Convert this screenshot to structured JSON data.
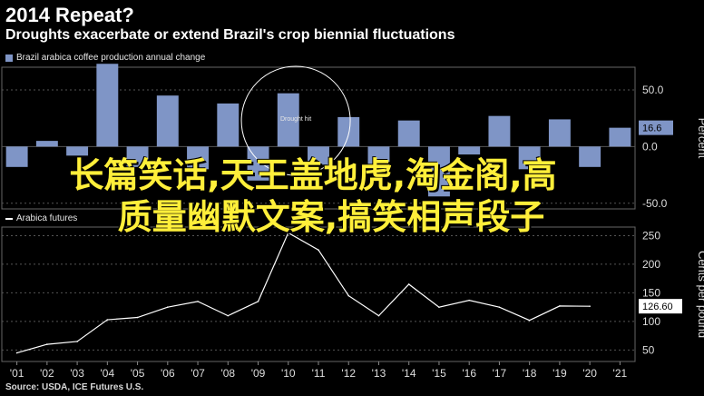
{
  "header": {
    "title": "2014 Repeat?",
    "subtitle": "Droughts exacerbate or extend Brazil's crop biennial fluctuations"
  },
  "source": "Source: USDA, ICE Futures U.S.",
  "overlay_text": [
    "长篇笑话,天王盖地虎,淘金阁,高",
    "质量幽默文案,搞笑相声段子"
  ],
  "colors": {
    "bar": "#7f95c6",
    "line": "#ffffff",
    "highlight_label": "#7f95c6",
    "overlay": "#ffef3a",
    "background": "#000000"
  },
  "chart_data": [
    {
      "type": "bar",
      "legend": "Brazil arabica coffee production annual change",
      "categories": [
        "'01",
        "'02",
        "'03",
        "'04",
        "'05",
        "'06",
        "'07",
        "'08",
        "'09",
        "'10",
        "'11",
        "'12",
        "'13",
        "'14",
        "'15",
        "'16",
        "'17",
        "'18",
        "'19",
        "'20",
        "'21"
      ],
      "values": [
        -18,
        5,
        -8,
        73,
        -18,
        45,
        -20,
        38,
        -30,
        47,
        -16,
        26,
        -20,
        23,
        -44,
        -7,
        27,
        -20,
        24,
        -18,
        16.6
      ],
      "ylim": [
        -55,
        70
      ],
      "yticks": [
        -50.0,
        0.0,
        50.0
      ],
      "ytick_labels": [
        "-50.0",
        "0.0",
        "50.0"
      ],
      "ylabel": "Percent",
      "last_value_label": "16.6",
      "annotation": "Drought hit"
    },
    {
      "type": "line",
      "legend": "Arabica futures",
      "categories": [
        "'01",
        "'02",
        "'03",
        "'04",
        "'05",
        "'06",
        "'07",
        "'08",
        "'09",
        "'10",
        "'11",
        "'12",
        "'13",
        "'14",
        "'15",
        "'16",
        "'17",
        "'18",
        "'19",
        "'20"
      ],
      "values": [
        45,
        60,
        65,
        103,
        107,
        125,
        135,
        110,
        135,
        255,
        225,
        145,
        110,
        165,
        125,
        137,
        125,
        102,
        127,
        126.6
      ],
      "ylim": [
        30,
        265
      ],
      "yticks": [
        50,
        100,
        150,
        200,
        250
      ],
      "ytick_labels": [
        "50",
        "100",
        "150",
        "200",
        "250"
      ],
      "ylabel": "Cents per pound",
      "last_value_label": "126.60"
    }
  ],
  "x_axis_labels": [
    "'01",
    "'02",
    "'03",
    "'04",
    "'05",
    "'06",
    "'07",
    "'08",
    "'09",
    "'10",
    "'11",
    "'12",
    "'13",
    "'14",
    "'15",
    "'16",
    "'17",
    "'18",
    "'19",
    "'20",
    "'21"
  ]
}
